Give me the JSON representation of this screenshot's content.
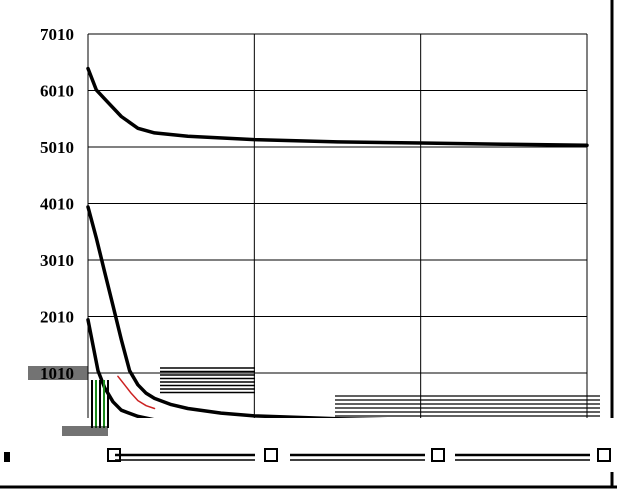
{
  "chart_data": {
    "type": "line",
    "title": "",
    "xlabel": "",
    "ylabel": "",
    "xlim": [
      0,
      300
    ],
    "ylim": [
      0,
      7010
    ],
    "y_ticks": [
      {
        "value": 1010,
        "label": "1010"
      },
      {
        "value": 2010,
        "label": "2010"
      },
      {
        "value": 3010,
        "label": "3010"
      },
      {
        "value": 4010,
        "label": "4010"
      },
      {
        "value": 5010,
        "label": "5010"
      },
      {
        "value": 6010,
        "label": "6010"
      },
      {
        "value": 7010,
        "label": "7010"
      }
    ],
    "x_gridlines": [
      0,
      100,
      200,
      300
    ],
    "grid": true,
    "legend": "none",
    "series": [
      {
        "color": "#000000",
        "x": [
          0,
          5,
          12,
          20,
          30,
          40,
          60,
          100,
          150,
          200,
          250,
          300
        ],
        "values": [
          6400,
          6020,
          5800,
          5550,
          5340,
          5260,
          5200,
          5140,
          5100,
          5080,
          5060,
          5040
        ]
      },
      {
        "color": "#000000",
        "x": [
          0,
          5,
          10,
          15,
          20,
          25,
          30,
          35,
          40,
          50,
          60,
          80,
          100,
          150,
          200,
          250,
          300
        ],
        "values": [
          3950,
          3400,
          2800,
          2200,
          1600,
          1050,
          800,
          650,
          560,
          450,
          380,
          300,
          250,
          200,
          170,
          150,
          130
        ]
      },
      {
        "color": "#000000",
        "x": [
          0,
          3,
          6,
          10,
          15,
          20,
          30,
          40,
          60,
          100,
          150,
          200,
          300
        ],
        "values": [
          1950,
          1500,
          1050,
          750,
          500,
          350,
          240,
          180,
          130,
          100,
          90,
          80,
          70
        ]
      },
      {
        "color": "#cc2222",
        "x": [
          18,
          22,
          26,
          30,
          35,
          40
        ],
        "values": [
          950,
          800,
          650,
          520,
          430,
          380
        ]
      }
    ]
  }
}
